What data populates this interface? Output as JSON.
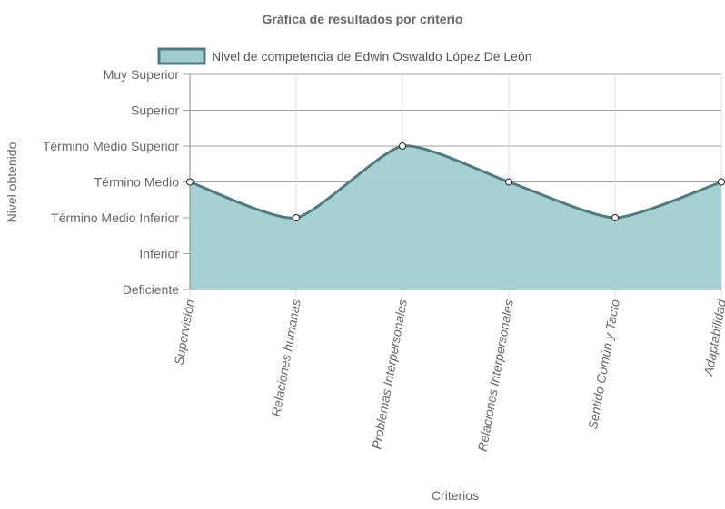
{
  "chart_data": {
    "type": "area",
    "title": "Gráfica de resultados por criterio",
    "xlabel": "Criterios",
    "ylabel": "Nivel obtenido",
    "categories": [
      "Supervisión",
      "Relaciones humanas",
      "Problemas Interpersonales",
      "Relaciones Interpersonales",
      "Sentido Común y Tacto",
      "Adaptabilidad"
    ],
    "y_levels": [
      "Deficiente",
      "Inferior",
      "Término Medio Inferior",
      "Término Medio",
      "Término Medio Superior",
      "Superior",
      "Muy Superior"
    ],
    "series": [
      {
        "name": "Nivel de competencia de Edwin Oswaldo López De León",
        "values": [
          3,
          2,
          4,
          3,
          2,
          3
        ],
        "value_labels": [
          "Término Medio",
          "Término Medio Inferior",
          "Término Medio Superior",
          "Término Medio",
          "Término Medio Inferior",
          "Término Medio"
        ],
        "fill_color": "#a2cdd0",
        "line_color": "#507a80"
      }
    ],
    "ylim": [
      0,
      6
    ],
    "grid": true,
    "legend_position": "top"
  }
}
